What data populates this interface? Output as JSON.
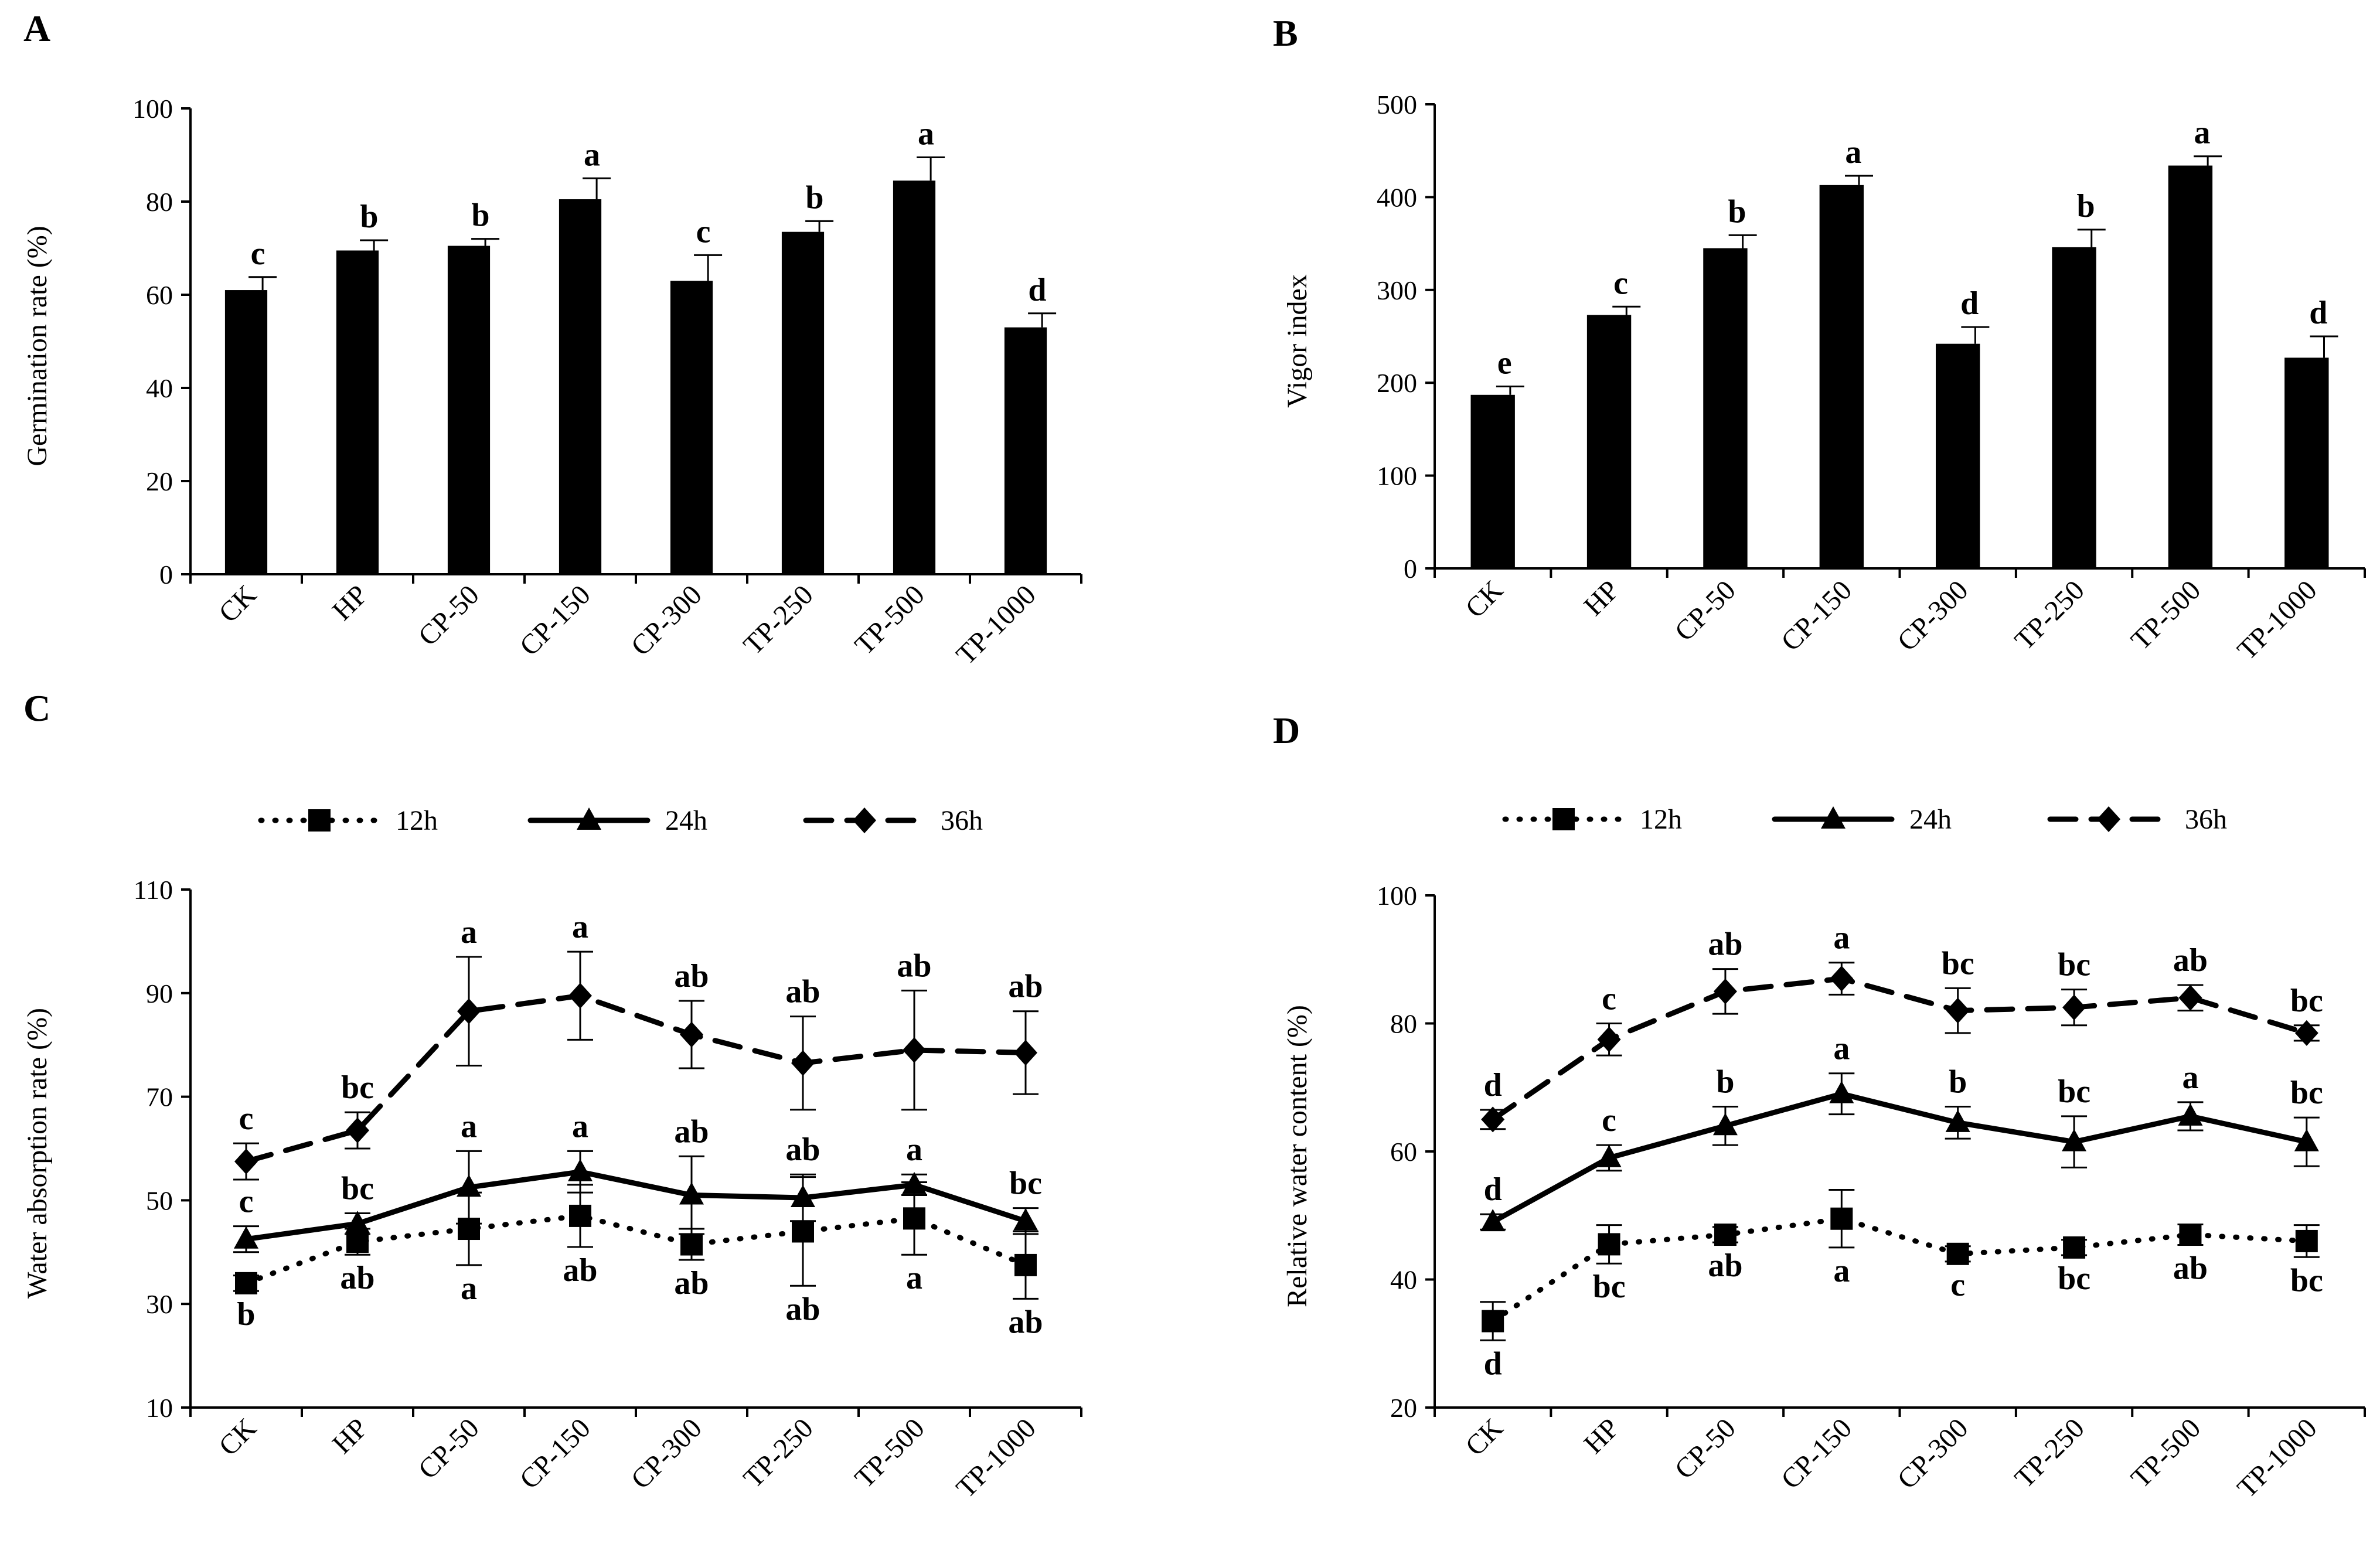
{
  "chart_data": [
    {
      "id": "A",
      "panel": "A",
      "type": "bar",
      "title": "",
      "xlabel": "",
      "ylabel": "Germination rate (%)",
      "ylim": [
        0,
        100
      ],
      "yticks": [
        "0",
        "20",
        "40",
        "60",
        "80",
        "100"
      ],
      "categories": [
        "CK",
        "HP",
        "CP-50",
        "CP-150",
        "CP-300",
        "TP-250",
        "TP-500",
        "TP-1000"
      ],
      "values": [
        61,
        69.5,
        70.5,
        80.5,
        63,
        73.5,
        84.5,
        53
      ],
      "errors": [
        2.8,
        2.2,
        1.5,
        4.5,
        5.5,
        2.3,
        5,
        3
      ],
      "labels": [
        "c",
        "b",
        "b",
        "a",
        "c",
        "b",
        "a",
        "d"
      ],
      "color": "#000000"
    },
    {
      "id": "B",
      "panel": "B",
      "type": "bar",
      "title": "",
      "xlabel": "",
      "ylabel": "Vigor index",
      "ylim": [
        0,
        500
      ],
      "yticks": [
        "0",
        "100",
        "200",
        "300",
        "400",
        "500"
      ],
      "categories": [
        "CK",
        "HP",
        "CP-50",
        "CP-150",
        "CP-300",
        "TP-250",
        "TP-500",
        "TP-1000"
      ],
      "values": [
        187,
        273,
        345,
        413,
        242,
        346,
        434,
        227
      ],
      "errors": [
        9,
        9,
        14,
        10,
        18,
        19,
        10,
        23
      ],
      "labels": [
        "e",
        "c",
        "b",
        "a",
        "d",
        "b",
        "a",
        "d"
      ],
      "color": "#000000"
    },
    {
      "id": "C",
      "panel": "C",
      "type": "line",
      "title": "",
      "xlabel": "",
      "ylabel": "Water absorption rate (%)",
      "ylim": [
        10,
        110
      ],
      "yticks": [
        "10",
        "30",
        "50",
        "70",
        "90",
        "110"
      ],
      "categories": [
        "CK",
        "HP",
        "CP-50",
        "CP-150",
        "CP-300",
        "TP-250",
        "TP-500",
        "TP-1000"
      ],
      "series": [
        {
          "name": "12h",
          "marker": "square",
          "style": "dotted",
          "values": [
            34,
            42,
            44.5,
            47,
            41.5,
            44,
            46.5,
            37.5
          ],
          "errors": [
            1.5,
            2.5,
            7,
            6,
            3,
            10.5,
            7,
            6.5
          ],
          "labels": [
            "b",
            "ab",
            "a",
            "ab",
            "ab",
            "ab",
            "a",
            "ab"
          ],
          "label_position": "below"
        },
        {
          "name": "24h",
          "marker": "triangle",
          "style": "solid",
          "values": [
            42.5,
            45.5,
            52.5,
            55.5,
            51,
            50.5,
            53,
            46
          ],
          "errors": [
            2.5,
            2,
            7,
            4,
            7.5,
            4.5,
            2,
            2.5
          ],
          "labels": [
            "c",
            "bc",
            "a",
            "a",
            "ab",
            "ab",
            "a",
            "bc"
          ],
          "label_position": "above"
        },
        {
          "name": "36h",
          "marker": "diamond",
          "style": "dashed",
          "values": [
            57.5,
            63.5,
            86.5,
            89.5,
            82,
            76.5,
            79,
            78.5
          ],
          "errors": [
            3.5,
            3.5,
            10.5,
            8.5,
            6.5,
            9,
            11.5,
            8
          ],
          "labels": [
            "c",
            "bc",
            "a",
            "a",
            "ab",
            "ab",
            "ab",
            "ab"
          ],
          "label_position": "above"
        }
      ]
    },
    {
      "id": "D",
      "panel": "D",
      "type": "line",
      "title": "",
      "xlabel": "",
      "ylabel": "Relative water content (%)",
      "ylim": [
        20,
        100
      ],
      "yticks": [
        "20",
        "40",
        "60",
        "80",
        "100"
      ],
      "categories": [
        "CK",
        "HP",
        "CP-50",
        "CP-150",
        "CP-300",
        "TP-250",
        "TP-500",
        "TP-1000"
      ],
      "series": [
        {
          "name": "12h",
          "marker": "square",
          "style": "dotted",
          "values": [
            33.5,
            45.5,
            47,
            49.5,
            44,
            45,
            47,
            46
          ],
          "errors": [
            3,
            3,
            1.2,
            4.5,
            1.2,
            1.2,
            1.6,
            2.5
          ],
          "labels": [
            "d",
            "bc",
            "ab",
            "a",
            "c",
            "bc",
            "ab",
            "bc"
          ],
          "label_position": "below"
        },
        {
          "name": "24h",
          "marker": "triangle",
          "style": "solid",
          "values": [
            49,
            59,
            64,
            69,
            64.5,
            61.5,
            65.5,
            61.5
          ],
          "errors": [
            1.2,
            2,
            3,
            3.2,
            2.5,
            4,
            2.2,
            3.8
          ],
          "labels": [
            "d",
            "c",
            "b",
            "a",
            "b",
            "bc",
            "a",
            "bc"
          ],
          "label_position": "above"
        },
        {
          "name": "36h",
          "marker": "diamond",
          "style": "dashed",
          "values": [
            65,
            77.5,
            85,
            87,
            82,
            82.5,
            84,
            78.5
          ],
          "errors": [
            1.5,
            2.5,
            3.5,
            2.5,
            3.5,
            2.8,
            2,
            1.2
          ],
          "labels": [
            "d",
            "c",
            "ab",
            "a",
            "bc",
            "bc",
            "ab",
            "bc"
          ],
          "label_position": "above"
        }
      ]
    }
  ]
}
